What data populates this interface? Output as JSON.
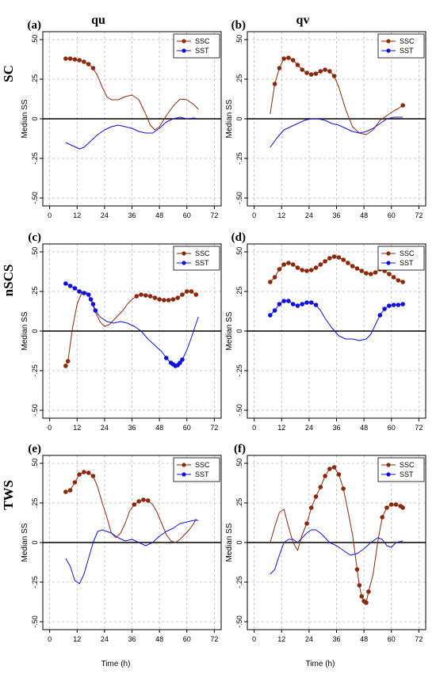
{
  "figure": {
    "column_titles": [
      "qu",
      "qv"
    ],
    "row_titles": [
      "SC",
      "nSCS",
      "TWS"
    ],
    "xlabel": "Time (h)"
  },
  "chart_data": [
    {
      "type": "line",
      "panel": "(a)",
      "ylabel": "Median SS",
      "xlim": [
        -3,
        75
      ],
      "ylim": [
        -0.55,
        0.55
      ],
      "xticks": [
        0,
        12,
        24,
        36,
        48,
        60,
        72
      ],
      "yticks": [
        -0.5,
        -0.25,
        0,
        0.25,
        0.5
      ],
      "legend_position": "top-right",
      "series": [
        {
          "name": "SSC",
          "color": "#8b2a0a",
          "x": [
            7,
            9,
            11,
            13,
            15,
            17,
            19,
            21,
            23,
            25,
            27,
            30,
            33,
            36,
            39,
            42,
            44,
            46,
            48,
            51,
            54,
            57,
            60,
            63,
            65
          ],
          "y": [
            0.38,
            0.38,
            0.375,
            0.37,
            0.36,
            0.345,
            0.32,
            0.27,
            0.2,
            0.14,
            0.12,
            0.12,
            0.14,
            0.15,
            0.12,
            0.03,
            -0.04,
            -0.07,
            -0.05,
            0.02,
            0.08,
            0.125,
            0.12,
            0.09,
            0.06
          ],
          "highlight": [
            [
              7,
              20
            ]
          ]
        },
        {
          "name": "SST",
          "color": "#1010dd",
          "x": [
            7,
            10,
            13,
            15,
            18,
            21,
            24,
            27,
            30,
            33,
            36,
            39,
            42,
            45,
            48,
            51,
            54,
            57,
            60,
            63,
            65
          ],
          "y": [
            -0.15,
            -0.17,
            -0.19,
            -0.18,
            -0.14,
            -0.1,
            -0.07,
            -0.05,
            -0.04,
            -0.05,
            -0.06,
            -0.08,
            -0.09,
            -0.09,
            -0.06,
            -0.02,
            0.0,
            0.01,
            0.0,
            0.005,
            0.0
          ],
          "highlight": []
        }
      ]
    },
    {
      "type": "line",
      "panel": "(b)",
      "ylabel": "Median SS",
      "xlim": [
        -3,
        75
      ],
      "ylim": [
        -0.55,
        0.55
      ],
      "xticks": [
        0,
        12,
        24,
        36,
        48,
        60,
        72
      ],
      "yticks": [
        -0.5,
        -0.25,
        0,
        0.25,
        0.5
      ],
      "legend_position": "top-right",
      "series": [
        {
          "name": "SSC",
          "color": "#8b2a0a",
          "x": [
            7,
            9,
            11,
            13,
            15,
            17,
            19,
            21,
            23,
            25,
            27,
            29,
            31,
            33,
            35,
            37,
            40,
            43,
            46,
            49,
            52,
            55,
            58,
            61,
            63,
            65
          ],
          "y": [
            0.03,
            0.22,
            0.32,
            0.38,
            0.385,
            0.37,
            0.34,
            0.31,
            0.29,
            0.28,
            0.285,
            0.3,
            0.31,
            0.3,
            0.27,
            0.2,
            0.06,
            -0.05,
            -0.09,
            -0.1,
            -0.07,
            -0.01,
            0.02,
            0.05,
            0.065,
            0.085
          ],
          "highlight": [
            [
              9,
              35
            ],
            [
              65,
              65
            ]
          ]
        },
        {
          "name": "SST",
          "color": "#1010dd",
          "x": [
            7,
            10,
            13,
            16,
            19,
            22,
            25,
            28,
            31,
            34,
            37,
            40,
            43,
            46,
            49,
            52,
            55,
            58,
            61,
            63,
            65
          ],
          "y": [
            -0.18,
            -0.12,
            -0.07,
            -0.05,
            -0.03,
            -0.01,
            0.0,
            0.0,
            -0.01,
            -0.03,
            -0.04,
            -0.06,
            -0.08,
            -0.09,
            -0.08,
            -0.06,
            -0.03,
            0.0,
            0.01,
            0.01,
            0.01
          ],
          "highlight": []
        }
      ]
    },
    {
      "type": "line",
      "panel": "(c)",
      "ylabel": "Median SS",
      "xlim": [
        -3,
        75
      ],
      "ylim": [
        -0.55,
        0.55
      ],
      "xticks": [
        0,
        12,
        24,
        36,
        48,
        60,
        72
      ],
      "yticks": [
        -0.5,
        -0.25,
        0,
        0.25,
        0.5
      ],
      "legend_position": "top-right",
      "series": [
        {
          "name": "SSC",
          "color": "#8b2a0a",
          "x": [
            7,
            8,
            10,
            12,
            14,
            16,
            18,
            20,
            22,
            24,
            26,
            28,
            30,
            32,
            34,
            36,
            38,
            40,
            42,
            44,
            46,
            48,
            50,
            52,
            54,
            56,
            58,
            60,
            62,
            64
          ],
          "y": [
            -0.22,
            -0.19,
            0.02,
            0.17,
            0.24,
            0.245,
            0.2,
            0.12,
            0.06,
            0.03,
            0.04,
            0.07,
            0.1,
            0.13,
            0.17,
            0.2,
            0.22,
            0.23,
            0.225,
            0.22,
            0.21,
            0.2,
            0.195,
            0.195,
            0.2,
            0.21,
            0.23,
            0.25,
            0.25,
            0.23
          ],
          "highlight": [
            [
              7,
              8
            ],
            [
              38,
              64
            ]
          ]
        },
        {
          "name": "SST",
          "color": "#1010dd",
          "x": [
            7,
            9,
            11,
            13,
            15,
            17,
            18,
            19,
            20,
            22,
            25,
            28,
            31,
            34,
            37,
            40,
            43,
            46,
            49,
            51,
            53,
            54,
            55,
            56,
            57,
            58,
            60,
            62,
            65
          ],
          "y": [
            0.3,
            0.285,
            0.27,
            0.25,
            0.24,
            0.23,
            0.2,
            0.17,
            0.13,
            0.09,
            0.06,
            0.05,
            0.06,
            0.05,
            0.03,
            0.0,
            -0.05,
            -0.09,
            -0.13,
            -0.17,
            -0.2,
            -0.21,
            -0.22,
            -0.215,
            -0.2,
            -0.18,
            -0.12,
            -0.04,
            0.09
          ],
          "highlight": [
            [
              7,
              20
            ],
            [
              51,
              58
            ]
          ]
        }
      ]
    },
    {
      "type": "line",
      "panel": "(d)",
      "ylabel": "Median SS",
      "xlim": [
        -3,
        75
      ],
      "ylim": [
        -0.55,
        0.55
      ],
      "xticks": [
        0,
        12,
        24,
        36,
        48,
        60,
        72
      ],
      "yticks": [
        -0.5,
        -0.25,
        0,
        0.25,
        0.5
      ],
      "legend_position": "top-right",
      "series": [
        {
          "name": "SSC",
          "color": "#8b2a0a",
          "x": [
            7,
            9,
            11,
            13,
            15,
            17,
            19,
            21,
            23,
            25,
            27,
            29,
            31,
            33,
            35,
            37,
            39,
            41,
            43,
            45,
            47,
            49,
            51,
            53,
            55,
            57,
            59,
            61,
            63,
            65
          ],
          "y": [
            0.31,
            0.34,
            0.39,
            0.42,
            0.43,
            0.42,
            0.4,
            0.385,
            0.38,
            0.385,
            0.4,
            0.42,
            0.44,
            0.46,
            0.47,
            0.465,
            0.45,
            0.43,
            0.41,
            0.395,
            0.38,
            0.365,
            0.36,
            0.37,
            0.39,
            0.38,
            0.36,
            0.34,
            0.32,
            0.31
          ],
          "highlight": [
            [
              7,
              65
            ]
          ]
        },
        {
          "name": "SST",
          "color": "#1010dd",
          "x": [
            7,
            9,
            11,
            13,
            15,
            17,
            19,
            21,
            23,
            25,
            27,
            29,
            31,
            34,
            37,
            40,
            43,
            46,
            49,
            51,
            53,
            55,
            57,
            59,
            61,
            63,
            65
          ],
          "y": [
            0.1,
            0.13,
            0.17,
            0.19,
            0.19,
            0.17,
            0.16,
            0.17,
            0.18,
            0.18,
            0.165,
            0.13,
            0.08,
            0.02,
            -0.03,
            -0.05,
            -0.05,
            -0.06,
            -0.05,
            -0.02,
            0.04,
            0.1,
            0.14,
            0.16,
            0.165,
            0.165,
            0.17
          ],
          "highlight": [
            [
              7,
              27
            ],
            [
              55,
              65
            ]
          ]
        }
      ]
    },
    {
      "type": "line",
      "panel": "(e)",
      "ylabel": "Median SS",
      "xlim": [
        -3,
        75
      ],
      "ylim": [
        -0.55,
        0.55
      ],
      "xticks": [
        0,
        12,
        24,
        36,
        48,
        60,
        72
      ],
      "yticks": [
        -0.5,
        -0.25,
        0,
        0.25,
        0.5
      ],
      "legend_position": "top-right",
      "series": [
        {
          "name": "SSC",
          "color": "#8b2a0a",
          "x": [
            7,
            9,
            11,
            13,
            15,
            17,
            19,
            21,
            23,
            25,
            27,
            29,
            31,
            33,
            35,
            37,
            39,
            41,
            43,
            45,
            47,
            49,
            51,
            53,
            55,
            57,
            59,
            61,
            63,
            64
          ],
          "y": [
            0.32,
            0.33,
            0.38,
            0.43,
            0.445,
            0.44,
            0.42,
            0.35,
            0.25,
            0.16,
            0.06,
            0.03,
            0.06,
            0.12,
            0.2,
            0.24,
            0.26,
            0.27,
            0.265,
            0.24,
            0.19,
            0.12,
            0.05,
            0.01,
            0.0,
            0.02,
            0.05,
            0.08,
            0.12,
            0.15
          ],
          "highlight": [
            [
              7,
              19
            ],
            [
              37,
              43
            ]
          ]
        },
        {
          "name": "SST",
          "color": "#1010dd",
          "x": [
            7,
            9,
            11,
            13,
            15,
            17,
            19,
            21,
            23,
            25,
            27,
            30,
            33,
            36,
            39,
            42,
            45,
            48,
            51,
            54,
            57,
            60,
            63,
            65
          ],
          "y": [
            -0.1,
            -0.15,
            -0.24,
            -0.26,
            -0.2,
            -0.1,
            0.0,
            0.07,
            0.08,
            0.07,
            0.06,
            0.03,
            0.01,
            0.02,
            0.0,
            -0.02,
            0.0,
            0.04,
            0.07,
            0.09,
            0.12,
            0.13,
            0.14,
            0.14
          ],
          "highlight": []
        }
      ]
    },
    {
      "type": "line",
      "panel": "(f)",
      "ylabel": "Median SS",
      "xlim": [
        -3,
        75
      ],
      "ylim": [
        -0.55,
        0.55
      ],
      "xticks": [
        0,
        12,
        24,
        36,
        48,
        60,
        72
      ],
      "yticks": [
        -0.5,
        -0.25,
        0,
        0.25,
        0.5
      ],
      "legend_position": "top-right",
      "series": [
        {
          "name": "SSC",
          "color": "#8b2a0a",
          "x": [
            7,
            9,
            11,
            13,
            15,
            17,
            19,
            21,
            23,
            25,
            27,
            29,
            31,
            33,
            35,
            37,
            39,
            41,
            43,
            45,
            46,
            47,
            48,
            49,
            50,
            52,
            54,
            56,
            58,
            60,
            62,
            64,
            65
          ],
          "y": [
            0.0,
            0.1,
            0.19,
            0.21,
            0.1,
            0.0,
            -0.05,
            0.05,
            0.12,
            0.22,
            0.29,
            0.35,
            0.42,
            0.465,
            0.475,
            0.43,
            0.34,
            0.2,
            0.05,
            -0.17,
            -0.27,
            -0.34,
            -0.37,
            -0.38,
            -0.31,
            -0.2,
            0.0,
            0.16,
            0.22,
            0.24,
            0.24,
            0.23,
            0.22
          ],
          "highlight": [
            [
              23,
              39
            ],
            [
              45,
              50
            ],
            [
              56,
              65
            ]
          ]
        },
        {
          "name": "SST",
          "color": "#1010dd",
          "x": [
            7,
            9,
            11,
            13,
            15,
            17,
            19,
            21,
            23,
            25,
            27,
            29,
            31,
            33,
            36,
            39,
            42,
            45,
            48,
            51,
            54,
            56,
            58,
            60,
            62,
            65
          ],
          "y": [
            -0.2,
            -0.17,
            -0.08,
            0.0,
            0.02,
            0.02,
            0.0,
            0.03,
            0.06,
            0.08,
            0.08,
            0.06,
            0.03,
            0.0,
            -0.02,
            -0.05,
            -0.08,
            -0.07,
            -0.04,
            0.0,
            0.03,
            0.02,
            -0.02,
            -0.03,
            0.0,
            0.01
          ],
          "highlight": []
        }
      ]
    }
  ]
}
